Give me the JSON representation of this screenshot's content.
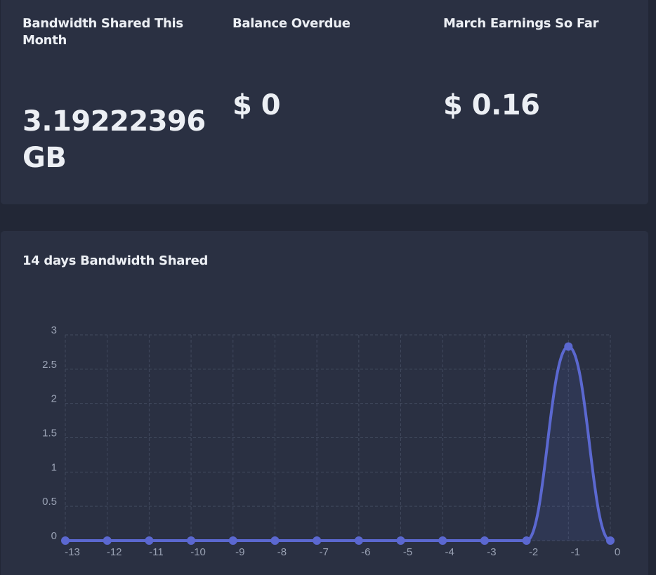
{
  "stats": {
    "bandwidth": {
      "label": "Bandwidth Shared This Month",
      "value": "3.19222396 GB"
    },
    "balance": {
      "label": "Balance Overdue",
      "value": "$ 0"
    },
    "earnings": {
      "label": "March Earnings So Far",
      "value": "$ 0.16"
    }
  },
  "colors": {
    "background": "#222736",
    "card": "#2a3042",
    "series_line": "#5b68d0",
    "grid": "#414a5e",
    "text": "#eceff4",
    "tick_text": "#9aa2b4"
  },
  "chart_data": {
    "type": "area",
    "title": "14 days Bandwidth Shared",
    "xlabel": "",
    "ylabel": "",
    "x": [
      -13,
      -12,
      -11,
      -10,
      -9,
      -8,
      -7,
      -6,
      -5,
      -4,
      -3,
      -2,
      -1,
      0
    ],
    "series": [
      {
        "values": [
          0,
          0,
          0,
          0,
          0,
          0,
          0,
          0,
          0,
          0,
          0,
          0,
          2.83,
          0
        ]
      }
    ],
    "y_ticks": [
      "0",
      "0.5",
      "1",
      "1.5",
      "2",
      "2.5",
      "3"
    ],
    "ylim": [
      0,
      3
    ],
    "xlim": [
      -13,
      0
    ],
    "grid": true,
    "legend": "none"
  }
}
